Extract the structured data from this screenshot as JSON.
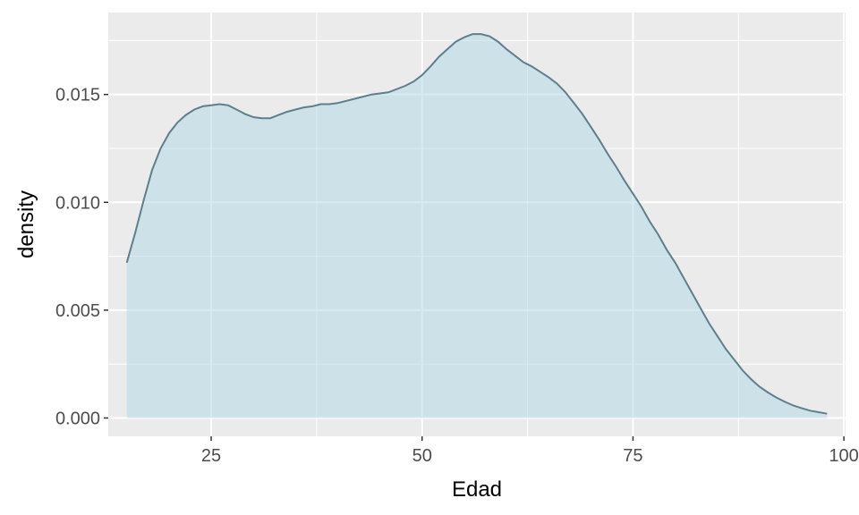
{
  "chart_data": {
    "type": "area",
    "title": "",
    "xlabel": "Edad",
    "ylabel": "density",
    "xlim": [
      12.8,
      100.2
    ],
    "ylim": [
      -0.00085,
      0.0188
    ],
    "x_ticks": [
      {
        "value": 25,
        "label": "25"
      },
      {
        "value": 50,
        "label": "50"
      },
      {
        "value": 75,
        "label": "75"
      },
      {
        "value": 100,
        "label": "100"
      }
    ],
    "y_ticks": [
      {
        "value": 0.0,
        "label": "0.000"
      },
      {
        "value": 0.005,
        "label": "0.005"
      },
      {
        "value": 0.01,
        "label": "0.010"
      },
      {
        "value": 0.015,
        "label": "0.015"
      }
    ],
    "grid": true,
    "legend": "none",
    "series": [
      {
        "x": [
          15,
          16,
          17,
          18,
          19,
          20,
          21,
          22,
          23,
          24,
          25,
          26,
          27,
          28,
          29,
          30,
          31,
          32,
          33,
          34,
          35,
          36,
          37,
          38,
          39,
          40,
          42,
          44,
          46,
          48,
          49,
          50,
          51,
          52,
          53,
          54,
          55,
          56,
          57,
          58,
          59,
          60,
          61,
          62,
          63,
          64,
          65,
          66,
          67,
          68,
          69,
          70,
          71,
          72,
          73,
          74,
          75,
          76,
          77,
          78,
          79,
          80,
          81,
          82,
          83,
          84,
          85,
          86,
          87,
          88,
          89,
          90,
          91,
          92,
          93,
          94,
          95,
          96,
          97,
          98
        ],
        "y": [
          0.0072,
          0.0086,
          0.0101,
          0.0115,
          0.0125,
          0.0132,
          0.0137,
          0.01405,
          0.0143,
          0.01445,
          0.0145,
          0.01455,
          0.0145,
          0.0143,
          0.0141,
          0.01395,
          0.0139,
          0.0139,
          0.01405,
          0.0142,
          0.0143,
          0.0144,
          0.01445,
          0.01455,
          0.01455,
          0.0146,
          0.0148,
          0.015,
          0.0151,
          0.0154,
          0.0156,
          0.0159,
          0.0163,
          0.01675,
          0.0171,
          0.01745,
          0.01765,
          0.0178,
          0.0178,
          0.0177,
          0.01745,
          0.0171,
          0.0168,
          0.0165,
          0.0163,
          0.01605,
          0.0158,
          0.0155,
          0.0151,
          0.0146,
          0.0141,
          0.0135,
          0.0129,
          0.01225,
          0.01165,
          0.011,
          0.0104,
          0.0098,
          0.0091,
          0.0085,
          0.0078,
          0.0072,
          0.0065,
          0.0058,
          0.0051,
          0.0044,
          0.0038,
          0.0032,
          0.0027,
          0.0022,
          0.0018,
          0.00145,
          0.00118,
          0.00095,
          0.00075,
          0.00058,
          0.00045,
          0.00034,
          0.00027,
          0.0002
        ]
      }
    ],
    "colors": {
      "panel_bg": "#ebebeb",
      "grid": "#ffffff",
      "fill": "#add8e6",
      "line": "#5f7f8c"
    }
  }
}
